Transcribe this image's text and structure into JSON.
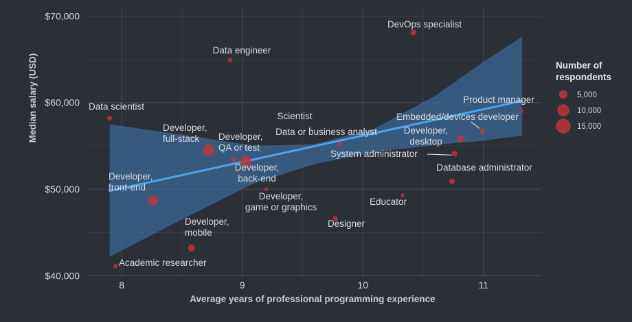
{
  "chart_data": {
    "type": "scatter",
    "title": "",
    "xlabel": "Average years of professional programming experience",
    "ylabel": "Median salary (USD)",
    "xlim": [
      7.72,
      11.48
    ],
    "ylim": [
      39800,
      70900
    ],
    "x_ticks": [
      8,
      9,
      10,
      11
    ],
    "x_tick_labels": [
      "8",
      "9",
      "10",
      "11"
    ],
    "y_ticks": [
      40000,
      50000,
      60000,
      70000
    ],
    "y_tick_labels": [
      "$40,000",
      "$50,000",
      "$60,000",
      "$70,000"
    ],
    "grid": true,
    "legend": {
      "title": "Number of respondents",
      "position": "right",
      "entries": [
        {
          "label": "5,000",
          "value": 5000
        },
        {
          "label": "10,000",
          "value": 10000
        },
        {
          "label": "15,000",
          "value": 15000
        }
      ]
    },
    "colors": {
      "background": "#2b2f36",
      "bubble": "#c0353d",
      "trend_line": "#4da3f0",
      "confidence_band": "#3d6a9a"
    },
    "trend_line": {
      "x": [
        7.9,
        11.32
      ],
      "y": [
        49800,
        60200
      ]
    },
    "confidence_band": [
      {
        "x": 7.9,
        "lower": 42200,
        "upper": 57500
      },
      {
        "x": 8.5,
        "lower": 46500,
        "upper": 56300
      },
      {
        "x": 9.1,
        "lower": 50700,
        "upper": 55000
      },
      {
        "x": 9.6,
        "lower": 52900,
        "upper": 55200
      },
      {
        "x": 10.1,
        "lower": 54300,
        "upper": 57000
      },
      {
        "x": 10.6,
        "lower": 55100,
        "upper": 60800
      },
      {
        "x": 11.0,
        "lower": 55600,
        "upper": 64700
      },
      {
        "x": 11.32,
        "lower": 56200,
        "upper": 67600
      }
    ],
    "points": [
      {
        "label": "Data scientist",
        "x": 7.9,
        "y": 58200,
        "respondents": 1500
      },
      {
        "label": "Academic researcher",
        "x": 7.95,
        "y": 41100,
        "respondents": 1400
      },
      {
        "label": "Developer, front-end",
        "x": 8.26,
        "y": 48700,
        "respondents": 6500
      },
      {
        "label": "Developer, mobile",
        "x": 8.58,
        "y": 43200,
        "respondents": 3500
      },
      {
        "label": "Developer, full-stack",
        "x": 8.72,
        "y": 54500,
        "respondents": 9500
      },
      {
        "label": "Data engineer",
        "x": 8.9,
        "y": 64900,
        "respondents": 1400
      },
      {
        "label": "Developer, QA or test",
        "x": 8.93,
        "y": 53400,
        "respondents": 1800
      },
      {
        "label": "Developer, back-end",
        "x": 9.03,
        "y": 53200,
        "respondents": 8500
      },
      {
        "label": "Developer, game or graphics",
        "x": 9.2,
        "y": 50000,
        "respondents": 900
      },
      {
        "label": "Scientist",
        "x": 9.56,
        "y": 57100,
        "respondents": 600
      },
      {
        "label": "Designer",
        "x": 9.77,
        "y": 46600,
        "respondents": 1800
      },
      {
        "label": "Data or business analyst",
        "x": 9.81,
        "y": 55200,
        "respondents": 1400
      },
      {
        "label": "Educator",
        "x": 10.33,
        "y": 49300,
        "respondents": 1000
      },
      {
        "label": "DevOps specialist",
        "x": 10.42,
        "y": 68100,
        "respondents": 2200
      },
      {
        "label": "Database administrator",
        "x": 10.74,
        "y": 50900,
        "respondents": 2100
      },
      {
        "label": "System administrator",
        "x": 10.76,
        "y": 54100,
        "respondents": 2000
      },
      {
        "label": "Developer, desktop",
        "x": 10.81,
        "y": 55800,
        "respondents": 3700
      },
      {
        "label": "Embedded/devices developer",
        "x": 10.99,
        "y": 56700,
        "respondents": 1800
      },
      {
        "label": "Product manager",
        "x": 11.32,
        "y": 59000,
        "respondents": 800
      }
    ]
  }
}
